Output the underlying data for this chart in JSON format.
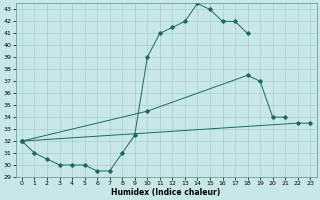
{
  "xlabel": "Humidex (Indice chaleur)",
  "bg_color": "#c8e8e8",
  "line_color": "#1a6b5a",
  "grid_color": "#9fc8c8",
  "xlim": [
    -0.5,
    23.5
  ],
  "ylim": [
    29,
    43.5
  ],
  "yticks": [
    29,
    30,
    31,
    32,
    33,
    34,
    35,
    36,
    37,
    38,
    39,
    40,
    41,
    42,
    43
  ],
  "xticks": [
    0,
    1,
    2,
    3,
    4,
    5,
    6,
    7,
    8,
    9,
    10,
    11,
    12,
    13,
    14,
    15,
    16,
    17,
    18,
    19,
    20,
    21,
    22,
    23
  ],
  "series1_x": [
    0,
    1,
    2,
    3,
    4,
    5,
    6,
    7,
    8,
    9,
    10,
    11,
    12,
    13,
    14,
    15,
    16,
    17,
    18
  ],
  "series1_y": [
    32,
    31,
    30.5,
    30,
    30,
    30,
    29.5,
    29.5,
    31,
    32.5,
    39,
    41,
    41.5,
    42,
    43.5,
    43,
    42,
    42,
    41
  ],
  "series2_x": [
    0,
    10,
    18,
    19,
    20,
    21
  ],
  "series2_y": [
    32,
    34.5,
    37.5,
    37,
    34,
    34
  ],
  "series3_x": [
    0,
    22,
    23
  ],
  "series3_y": [
    32,
    33.5,
    33.5
  ]
}
